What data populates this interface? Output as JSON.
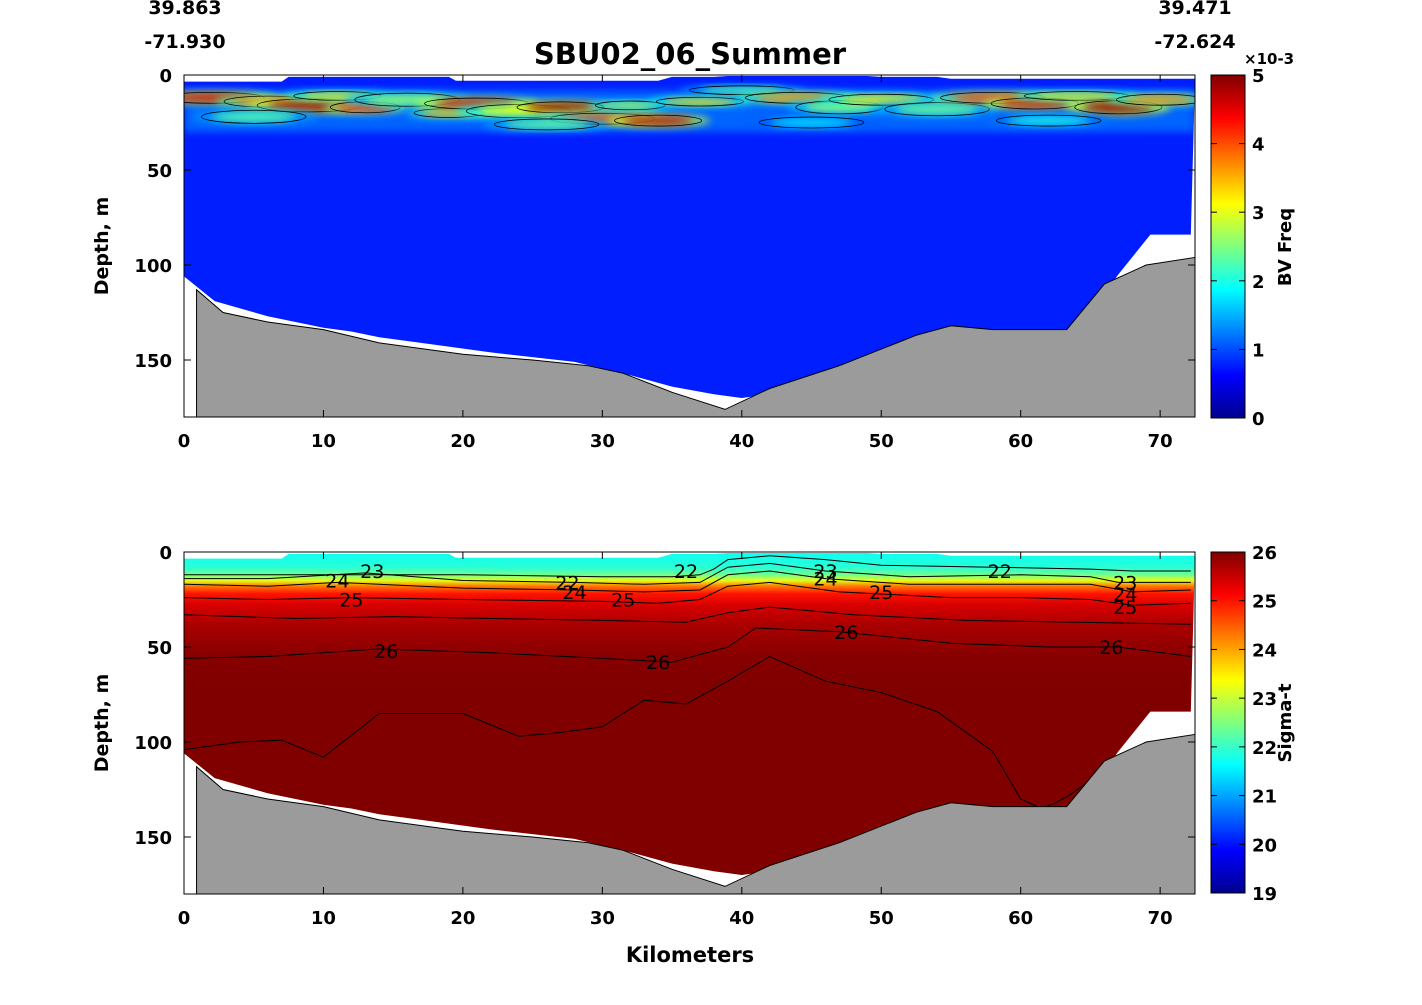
{
  "figure": {
    "title": "SBU02_06_Summer",
    "start_lat": "39.863",
    "start_lon": "-71.930",
    "end_lat": "39.471",
    "end_lon": "-72.624"
  },
  "chart_data": [
    {
      "type": "heatmap",
      "name": "bv-freq-section",
      "xlabel": "",
      "ylabel": "Depth, m",
      "colorbar_label": "BV Freq",
      "colorbar_exponent": "×10-3",
      "xlim": [
        0,
        72.5
      ],
      "ylim": [
        180,
        0
      ],
      "xticks": [
        0,
        10,
        20,
        30,
        40,
        50,
        60,
        70
      ],
      "yticks": [
        0,
        50,
        100,
        150
      ],
      "clim": [
        0,
        5
      ],
      "cticks": [
        0,
        1,
        2,
        3,
        4,
        5
      ],
      "colormap": "jet",
      "grid": false,
      "surface_band_depth_m": [
        8,
        30
      ],
      "background_value": 0.25
    },
    {
      "type": "heatmap",
      "name": "sigma-t-section",
      "xlabel": "Kilometers",
      "ylabel": "Depth, m",
      "colorbar_label": "Sigma-t",
      "xlim": [
        0,
        72.5
      ],
      "ylim": [
        180,
        0
      ],
      "xticks": [
        0,
        10,
        20,
        30,
        40,
        50,
        60,
        70
      ],
      "yticks": [
        0,
        50,
        100,
        150
      ],
      "clim": [
        19,
        26
      ],
      "cticks": [
        19,
        20,
        21,
        22,
        23,
        24,
        25,
        26
      ],
      "colormap": "jet",
      "grid": false,
      "contour_labels": [
        {
          "text": "23",
          "x": 13.5,
          "y": 10
        },
        {
          "text": "24",
          "x": 11,
          "y": 15
        },
        {
          "text": "25",
          "x": 12,
          "y": 25
        },
        {
          "text": "22",
          "x": 27.5,
          "y": 16
        },
        {
          "text": "24",
          "x": 28,
          "y": 21
        },
        {
          "text": "25",
          "x": 31.5,
          "y": 25
        },
        {
          "text": "22",
          "x": 36,
          "y": 10
        },
        {
          "text": "23",
          "x": 46,
          "y": 10
        },
        {
          "text": "24",
          "x": 46,
          "y": 14
        },
        {
          "text": "25",
          "x": 50,
          "y": 21
        },
        {
          "text": "22",
          "x": 58.5,
          "y": 10
        },
        {
          "text": "23",
          "x": 67.5,
          "y": 16
        },
        {
          "text": "24",
          "x": 67.5,
          "y": 22
        },
        {
          "text": "25",
          "x": 67.5,
          "y": 29
        },
        {
          "text": "26",
          "x": 14.5,
          "y": 52
        },
        {
          "text": "26",
          "x": 34,
          "y": 58
        },
        {
          "text": "26",
          "x": 47.5,
          "y": 42
        },
        {
          "text": "26",
          "x": 66.5,
          "y": 50
        }
      ]
    }
  ],
  "section": {
    "bathymetry_km": [
      0.9,
      2.8,
      6.0,
      10.0,
      14.0,
      20.0,
      25.0,
      29.0,
      31.5,
      35.0,
      38.8,
      42.0,
      47.0,
      52.5,
      55.0,
      58.0,
      63.3,
      66.0,
      69.0,
      72.5
    ],
    "bathymetry_depth_m": [
      113,
      125,
      130,
      134,
      141,
      147,
      150,
      153,
      157,
      167,
      176,
      165,
      153,
      137,
      132,
      134,
      134,
      110,
      100,
      96
    ],
    "data_bottom_km": [
      0.0,
      2.2,
      6.0,
      8.0,
      10.0,
      12.0,
      14.0,
      18.0,
      22.0,
      28.0,
      32.0,
      35.0,
      38.0,
      40.0,
      42.0,
      48.0,
      55.0,
      60.0,
      64.0,
      65.5,
      67.0,
      69.3,
      72.2
    ],
    "data_bottom_depth_m": [
      106,
      119,
      127,
      130,
      133,
      135,
      138,
      142,
      146,
      151,
      158,
      164,
      168,
      170,
      168,
      158,
      145,
      140,
      136,
      120,
      105,
      84,
      84
    ],
    "data_top_km": [
      0.0,
      7.0,
      7.5,
      19.0,
      19.5,
      34.0,
      35.0,
      38.0,
      39.0,
      49.0,
      50.0,
      54.0,
      55.0,
      72.5
    ],
    "data_top_depth_m": [
      3.5,
      3.5,
      1.0,
      1.0,
      3.0,
      3.0,
      1.0,
      1.0,
      0.5,
      0.5,
      1.0,
      1.0,
      2.0,
      2.0
    ],
    "sigma_isopycnals": [
      {
        "level": 22,
        "km": [
          0,
          10,
          20,
          30,
          35,
          37,
          38,
          39,
          42,
          46,
          50,
          58,
          65,
          68,
          72.2
        ],
        "depth": [
          12,
          12,
          12,
          13,
          13,
          12,
          9,
          4,
          2,
          4,
          7,
          8,
          9,
          10,
          10
        ]
      },
      {
        "level": 23,
        "km": [
          0,
          6,
          13,
          20,
          28,
          33,
          37,
          39,
          42,
          46,
          52,
          60,
          65,
          67,
          72.2
        ],
        "depth": [
          14,
          14,
          11,
          15,
          16,
          17,
          16,
          8,
          6,
          10,
          13,
          12,
          13,
          16,
          16
        ]
      },
      {
        "level": 24,
        "km": [
          0,
          6,
          11,
          20,
          28,
          33,
          37,
          39,
          42,
          46,
          52,
          60,
          65,
          68,
          72.2
        ],
        "depth": [
          17,
          18,
          16,
          19,
          20,
          21,
          20,
          12,
          10,
          14,
          17,
          17,
          17,
          21,
          20
        ]
      },
      {
        "level": 25,
        "km": [
          0,
          6,
          12,
          20,
          30,
          34,
          37,
          39,
          42,
          47,
          55,
          60,
          65,
          68,
          72.2
        ],
        "depth": [
          24,
          25,
          24,
          25,
          26,
          27,
          25,
          18,
          16,
          21,
          24,
          24,
          25,
          28,
          27
        ]
      },
      {
        "level": 25.5,
        "km": [
          0,
          8,
          15,
          22,
          30,
          36,
          39,
          42,
          48,
          56,
          64,
          72.2
        ],
        "depth": [
          33,
          35,
          34,
          35,
          36,
          37,
          32,
          29,
          33,
          36,
          37,
          38
        ]
      },
      {
        "level": 26,
        "km": [
          0,
          6,
          14,
          22,
          30,
          35,
          39,
          41,
          47,
          55,
          62,
          67,
          72.2
        ],
        "depth": [
          56,
          55,
          51,
          53,
          56,
          58,
          50,
          40,
          42,
          48,
          50,
          50,
          55
        ]
      },
      {
        "level": 26.2,
        "km": [
          0,
          4,
          7,
          10,
          14,
          20,
          24,
          27,
          30,
          33,
          36,
          39,
          42,
          46,
          50,
          54,
          58,
          60,
          61.5,
          62.5,
          63.5,
          65,
          67
        ],
        "depth": [
          104,
          100,
          99,
          108,
          85,
          85,
          97,
          95,
          92,
          78,
          80,
          68,
          55,
          68,
          74,
          84,
          105,
          130,
          135,
          132,
          128,
          120,
          110
        ]
      }
    ],
    "bv_blobs": [
      {
        "km": 2,
        "depth": 12,
        "w": 3,
        "h": 2.5,
        "value": 4.6
      },
      {
        "km": 6,
        "depth": 14,
        "w": 2.5,
        "h": 2.5,
        "value": 3.8
      },
      {
        "km": 9,
        "depth": 16,
        "w": 3,
        "h": 3,
        "value": 4.8
      },
      {
        "km": 11,
        "depth": 11,
        "w": 2.5,
        "h": 2,
        "value": 3.3
      },
      {
        "km": 13,
        "depth": 17,
        "w": 2,
        "h": 2.5,
        "value": 4.3
      },
      {
        "km": 16,
        "depth": 13,
        "w": 3,
        "h": 3,
        "value": 2.6
      },
      {
        "km": 19,
        "depth": 20,
        "w": 2,
        "h": 2,
        "value": 3.6
      },
      {
        "km": 21,
        "depth": 15,
        "w": 3,
        "h": 2.5,
        "value": 4.6
      },
      {
        "km": 24,
        "depth": 19,
        "w": 3,
        "h": 3,
        "value": 3.1
      },
      {
        "km": 27,
        "depth": 17,
        "w": 2.5,
        "h": 2.5,
        "value": 4.9
      },
      {
        "km": 30,
        "depth": 23,
        "w": 3,
        "h": 2.5,
        "value": 4.1
      },
      {
        "km": 32,
        "depth": 16,
        "w": 2,
        "h": 2,
        "value": 2.8
      },
      {
        "km": 34,
        "depth": 24,
        "w": 2.5,
        "h": 2.5,
        "value": 4.7
      },
      {
        "km": 37,
        "depth": 14,
        "w": 2.5,
        "h": 2,
        "value": 3.4
      },
      {
        "km": 40,
        "depth": 8,
        "w": 3,
        "h": 2,
        "value": 2.3
      },
      {
        "km": 44,
        "depth": 12,
        "w": 3,
        "h": 2.5,
        "value": 3.7
      },
      {
        "km": 47,
        "depth": 17,
        "w": 2.5,
        "h": 3,
        "value": 2.6
      },
      {
        "km": 50,
        "depth": 13,
        "w": 3,
        "h": 2.5,
        "value": 3.3
      },
      {
        "km": 54,
        "depth": 18,
        "w": 3,
        "h": 3,
        "value": 2.4
      },
      {
        "km": 58,
        "depth": 12,
        "w": 3,
        "h": 2.5,
        "value": 4.1
      },
      {
        "km": 61,
        "depth": 15,
        "w": 2.5,
        "h": 2.5,
        "value": 4.6
      },
      {
        "km": 64,
        "depth": 11,
        "w": 3,
        "h": 2,
        "value": 3.3
      },
      {
        "km": 67,
        "depth": 17,
        "w": 2.5,
        "h": 3,
        "value": 4.9
      },
      {
        "km": 70,
        "depth": 13,
        "w": 2.5,
        "h": 2.5,
        "value": 3.7
      },
      {
        "km": 5,
        "depth": 22,
        "w": 3,
        "h": 3,
        "value": 2.3
      },
      {
        "km": 26,
        "depth": 26,
        "w": 3,
        "h": 2.5,
        "value": 2.4
      },
      {
        "km": 45,
        "depth": 25,
        "w": 3,
        "h": 2.5,
        "value": 1.8
      },
      {
        "km": 62,
        "depth": 24,
        "w": 3,
        "h": 2.5,
        "value": 2.0
      }
    ]
  }
}
